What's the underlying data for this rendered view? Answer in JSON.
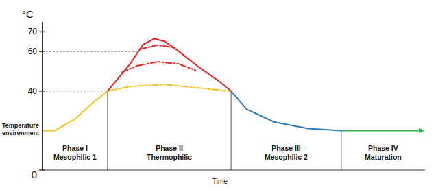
{
  "chart_data": {
    "type": "line",
    "y_label": "°C",
    "x_label": "Time",
    "xlim": [
      0,
      100
    ],
    "ylim": [
      0,
      75
    ],
    "yticks": [
      0,
      40,
      60,
      70
    ],
    "tick_labels": "y",
    "grid": false,
    "series": [
      {
        "color": "#f5c01f",
        "line_style": "solid",
        "x": [
          0,
          3.2,
          8.6,
          13.1,
          17
        ],
        "values": [
          20,
          20,
          26,
          34,
          40
        ]
      },
      {
        "color": "#f5c01f",
        "line_style": "dashdotdot",
        "x": [
          17,
          22.9,
          31.9,
          40.9,
          48.9
        ],
        "values": [
          40,
          42.3,
          43.3,
          41.6,
          40
        ]
      },
      {
        "color": "#e8211b",
        "line_style": "solid",
        "x": [
          17,
          22.9,
          26.3,
          29.2,
          31.9,
          35.5,
          40.9,
          46.2,
          49.3
        ],
        "values": [
          40,
          53.8,
          63.6,
          66.5,
          65.2,
          60.3,
          52.1,
          44.9,
          40
        ]
      },
      {
        "color": "#e8211b",
        "line_style": "dashdot",
        "x": [
          25.6,
          30.1,
          34.6
        ],
        "values": [
          61.3,
          63.3,
          62
        ]
      },
      {
        "color": "#e8211b",
        "line_style": "dashdotdot",
        "x": [
          20.8,
          24.7,
          30.1,
          35.5,
          40
        ],
        "values": [
          49.5,
          52.8,
          54.8,
          53.8,
          50.5
        ]
      },
      {
        "color": "#2e75b6",
        "line_style": "solid",
        "x": [
          49.3,
          53.4,
          60.6,
          69.5,
          78.1
        ],
        "values": [
          40,
          30.8,
          24.3,
          21,
          20
        ]
      },
      {
        "color": "#2fb34a",
        "line_style": "solid",
        "marker": "arrow",
        "x": [
          78.1,
          99.1
        ],
        "values": [
          20,
          20
        ]
      }
    ],
    "phases": [
      {
        "label": [
          "Phase I",
          "Mesophilic 1"
        ],
        "start": 0,
        "end": 17
      },
      {
        "label": [
          "Phase II",
          "Thermophilic"
        ],
        "start": 17,
        "end": 49.3
      },
      {
        "label": [
          "Phase III",
          "Mesophilic 2"
        ],
        "start": 49.3,
        "end": 78.1
      },
      {
        "label": [
          "Phase IV",
          "Maturation"
        ],
        "start": 78.1,
        "end": 100
      }
    ],
    "annotations": [
      {
        "text": [
          "Temperature",
          "environment"
        ],
        "y": 20
      }
    ]
  }
}
